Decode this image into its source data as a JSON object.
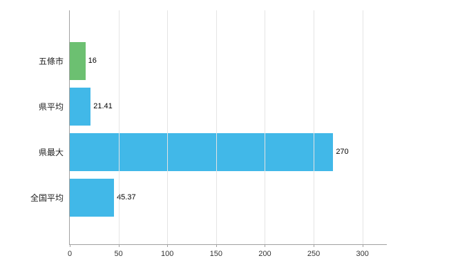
{
  "chart_data": {
    "type": "bar",
    "orientation": "horizontal",
    "title": "",
    "xlabel": "",
    "ylabel": "",
    "categories": [
      "五條市",
      "県平均",
      "県最大",
      "全国平均"
    ],
    "values": [
      16,
      21.41,
      270,
      45.37
    ],
    "value_labels": [
      "16",
      "21.41",
      "270",
      "45.37"
    ],
    "bar_colors": [
      "#6cc071",
      "#41b8e8",
      "#41b8e8",
      "#41b8e8"
    ],
    "x_ticks": [
      0,
      50,
      100,
      150,
      200,
      250,
      300
    ],
    "xlim": [
      0,
      325
    ],
    "grid": true,
    "legend": "none"
  },
  "colors": {
    "axis": "#a0a0a0",
    "grid": "#e4e4e4",
    "tick-text": "#333333",
    "label-text": "#222222",
    "value-text": "#000000"
  }
}
